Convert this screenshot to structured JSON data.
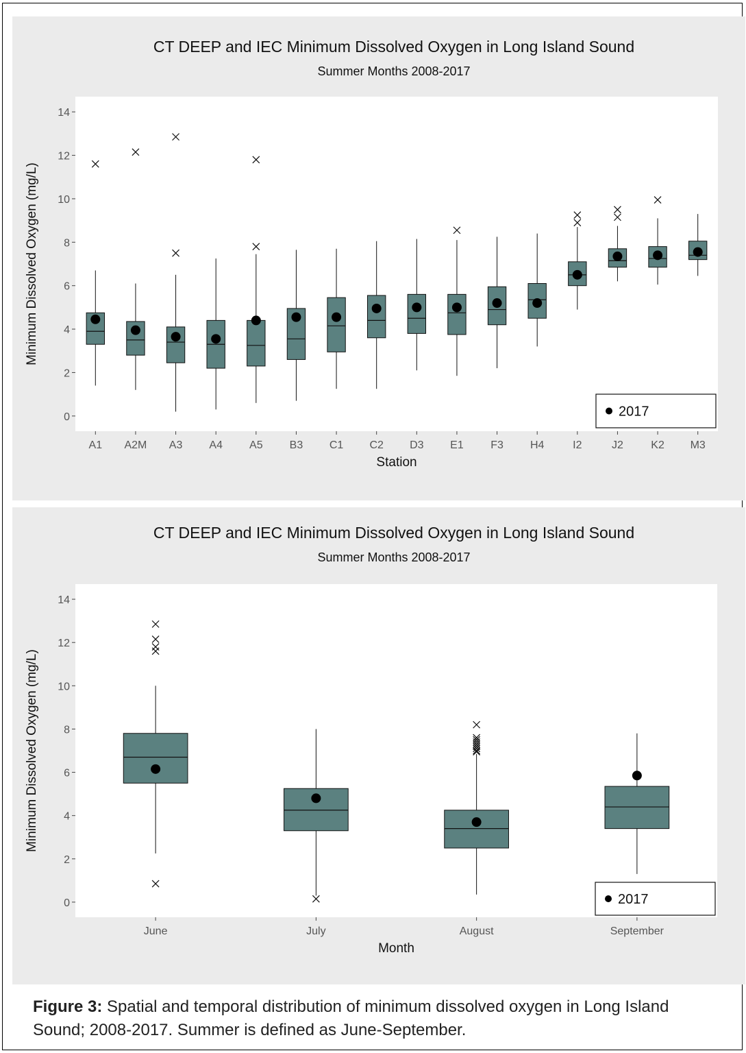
{
  "chart_data": [
    {
      "type": "box",
      "title": "CT DEEP and IEC Minimum Dissolved Oxygen in Long Island Sound",
      "subtitle": "Summer Months 2008-2017",
      "xlabel": "Station",
      "ylabel": "Minimum Dissolved Oxygen (mg/L)",
      "ylim": [
        -0.7,
        14.7
      ],
      "yticks": [
        0,
        2,
        4,
        6,
        8,
        10,
        12,
        14
      ],
      "legend": {
        "label": "2017",
        "position": "bottom-right"
      },
      "grid": false,
      "colors": {
        "box_fill": "#5b8180",
        "panel_bg": "#ebebeb",
        "plot_bg": "#ffffff"
      },
      "categories": [
        "A1",
        "A2M",
        "A3",
        "A4",
        "A5",
        "B3",
        "C1",
        "C2",
        "D3",
        "E1",
        "F3",
        "H4",
        "I2",
        "J2",
        "K2",
        "M3"
      ],
      "boxes": [
        {
          "low": 1.4,
          "q1": 3.3,
          "median": 3.9,
          "q3": 4.75,
          "high": 6.7,
          "outliers": [
            11.6
          ],
          "point_2017": 4.45
        },
        {
          "low": 1.2,
          "q1": 2.8,
          "median": 3.5,
          "q3": 4.35,
          "high": 6.1,
          "outliers": [
            12.15
          ],
          "point_2017": 3.95
        },
        {
          "low": 0.2,
          "q1": 2.45,
          "median": 3.4,
          "q3": 4.1,
          "high": 6.5,
          "outliers": [
            12.85,
            7.5
          ],
          "point_2017": 3.65
        },
        {
          "low": 0.3,
          "q1": 2.2,
          "median": 3.3,
          "q3": 4.4,
          "high": 7.25,
          "outliers": [],
          "point_2017": 3.55
        },
        {
          "low": 0.6,
          "q1": 2.3,
          "median": 3.25,
          "q3": 4.4,
          "high": 7.45,
          "outliers": [
            11.8,
            7.8
          ],
          "point_2017": 4.4
        },
        {
          "low": 0.7,
          "q1": 2.6,
          "median": 3.55,
          "q3": 4.95,
          "high": 7.65,
          "outliers": [],
          "point_2017": 4.55
        },
        {
          "low": 1.25,
          "q1": 2.95,
          "median": 4.15,
          "q3": 5.45,
          "high": 7.7,
          "outliers": [],
          "point_2017": 4.55
        },
        {
          "low": 1.25,
          "q1": 3.6,
          "median": 4.4,
          "q3": 5.55,
          "high": 8.05,
          "outliers": [],
          "point_2017": 4.95
        },
        {
          "low": 2.1,
          "q1": 3.8,
          "median": 4.5,
          "q3": 5.6,
          "high": 8.15,
          "outliers": [],
          "point_2017": 5.0
        },
        {
          "low": 1.85,
          "q1": 3.75,
          "median": 4.75,
          "q3": 5.6,
          "high": 8.1,
          "outliers": [
            8.55
          ],
          "point_2017": 5.0
        },
        {
          "low": 2.2,
          "q1": 4.2,
          "median": 4.9,
          "q3": 5.95,
          "high": 8.25,
          "outliers": [],
          "point_2017": 5.2
        },
        {
          "low": 3.2,
          "q1": 4.5,
          "median": 5.35,
          "q3": 6.1,
          "high": 8.4,
          "outliers": [],
          "point_2017": 5.2
        },
        {
          "low": 4.9,
          "q1": 6.0,
          "median": 6.5,
          "q3": 7.1,
          "high": 8.7,
          "outliers": [
            9.25,
            8.9
          ],
          "point_2017": 6.5
        },
        {
          "low": 6.2,
          "q1": 6.85,
          "median": 7.15,
          "q3": 7.7,
          "high": 8.75,
          "outliers": [
            9.5,
            9.15
          ],
          "point_2017": 7.35
        },
        {
          "low": 6.05,
          "q1": 6.85,
          "median": 7.25,
          "q3": 7.8,
          "high": 9.1,
          "outliers": [
            9.95
          ],
          "point_2017": 7.4
        },
        {
          "low": 6.45,
          "q1": 7.2,
          "median": 7.4,
          "q3": 8.05,
          "high": 9.3,
          "outliers": [],
          "point_2017": 7.55
        }
      ]
    },
    {
      "type": "box",
      "title": "CT DEEP and IEC Minimum Dissolved Oxygen in Long Island Sound",
      "subtitle": "Summer Months 2008-2017",
      "xlabel": "Month",
      "ylabel": "Minimum Dissolved Oxygen (mg/L)",
      "ylim": [
        -0.7,
        14.7
      ],
      "yticks": [
        0,
        2,
        4,
        6,
        8,
        10,
        12,
        14
      ],
      "legend": {
        "label": "2017",
        "position": "bottom-right"
      },
      "grid": false,
      "colors": {
        "box_fill": "#5b8180",
        "panel_bg": "#ebebeb",
        "plot_bg": "#ffffff"
      },
      "categories": [
        "June",
        "July",
        "August",
        "September"
      ],
      "boxes": [
        {
          "low": 2.25,
          "q1": 5.5,
          "median": 6.7,
          "q3": 7.8,
          "high": 10.0,
          "outliers": [
            12.85,
            12.15,
            11.8,
            11.6,
            0.85
          ],
          "point_2017": 6.15
        },
        {
          "low": 0.3,
          "q1": 3.3,
          "median": 4.25,
          "q3": 5.25,
          "high": 8.0,
          "outliers": [
            0.15
          ],
          "point_2017": 4.8
        },
        {
          "low": 0.35,
          "q1": 2.5,
          "median": 3.4,
          "q3": 4.25,
          "high": 6.85,
          "outliers": [
            8.2,
            7.6,
            7.5,
            7.4,
            7.3,
            7.2,
            7.1,
            7.0,
            6.95
          ],
          "point_2017": 3.7
        },
        {
          "low": 1.3,
          "q1": 3.4,
          "median": 4.4,
          "q3": 5.35,
          "high": 7.8,
          "outliers": [],
          "point_2017": 5.85
        }
      ]
    }
  ],
  "caption": {
    "label": "Figure 3:",
    "text": " Spatial and temporal distribution of minimum dissolved oxygen in Long Island Sound; 2008-2017. Summer is defined as June-September."
  }
}
